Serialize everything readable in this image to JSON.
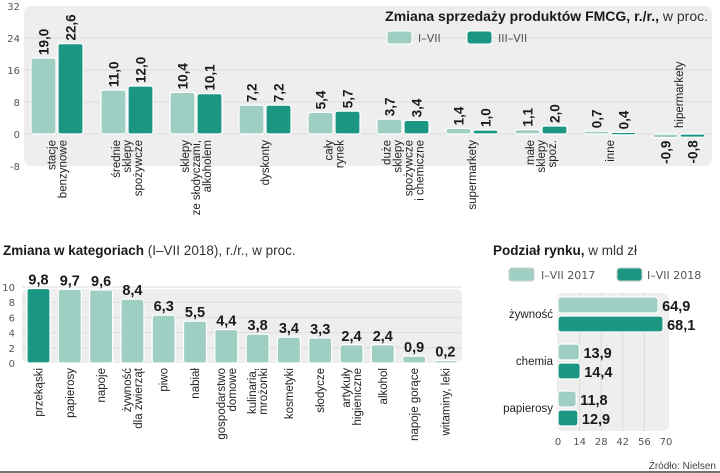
{
  "colors": {
    "light": "#9fcfc3",
    "dark": "#1a9683",
    "panel": "#eeeeee",
    "grid": "#dddddd",
    "bar_stroke": "#ffffff"
  },
  "source": "Źródło: Nielsen",
  "chart_data": [
    {
      "id": "fmcg",
      "type": "bar",
      "title": "Zmiana sprzedaży produktów FMCG, r./r.,",
      "title_suffix": " w proc.",
      "xlabel": "",
      "ylabel": "",
      "ylim": [
        -8,
        32
      ],
      "yticks": [
        "32",
        "24",
        "16",
        "8",
        "0",
        "-8"
      ],
      "ytick_values": [
        32,
        24,
        16,
        8,
        0,
        -8
      ],
      "legend": [
        "I–VII",
        "III–VII"
      ],
      "legend_position": "top-right",
      "categories": [
        [
          "stacje",
          "benzynowe"
        ],
        [
          "średnie",
          "sklepy",
          "spożywcze"
        ],
        [
          "sklepy",
          "ze słodyczami,",
          "alkoholem"
        ],
        [
          "dyskonty"
        ],
        [
          "cały",
          "rynek"
        ],
        [
          "duże",
          "sklepy",
          "spożywcze",
          "i chemiczne"
        ],
        [
          "supermarkety"
        ],
        [
          "małe",
          "sklepy",
          "spoż."
        ],
        [
          "inne"
        ],
        [
          "hipermarkety"
        ]
      ],
      "series": [
        {
          "name": "I–VII",
          "values": [
            19.0,
            11.0,
            10.4,
            7.2,
            5.4,
            3.7,
            1.4,
            1.1,
            0.7,
            -0.9
          ],
          "labels": [
            "19,0",
            "11,0",
            "10,4",
            "7,2",
            "5,4",
            "3,7",
            "1,4",
            "1,1",
            "0,7",
            "-0,9"
          ]
        },
        {
          "name": "III–VII",
          "values": [
            22.6,
            12.0,
            10.1,
            7.2,
            5.7,
            3.4,
            1.0,
            2.0,
            0.4,
            -0.8
          ],
          "labels": [
            "22,6",
            "12,0",
            "10,1",
            "7,2",
            "5,7",
            "3,4",
            "1,0",
            "2,0",
            "0,4",
            "-0,8"
          ]
        }
      ]
    },
    {
      "id": "categories",
      "type": "bar",
      "title": "Zmiana w kategoriach",
      "title_suffix": " (I–VII 2018), r./r., w proc.",
      "ylim": [
        0,
        10
      ],
      "yticks": [
        "10",
        "8",
        "6",
        "4",
        "2",
        "0"
      ],
      "ytick_values": [
        10,
        8,
        6,
        4,
        2,
        0
      ],
      "categories": [
        [
          "przekąski"
        ],
        [
          "papierosy"
        ],
        [
          "napoje"
        ],
        [
          "żywność",
          "dla zwierząt"
        ],
        [
          "piwo"
        ],
        [
          "nabiał"
        ],
        [
          "gospodarstwo",
          "domowe"
        ],
        [
          "kulinaria,",
          "mrożonki"
        ],
        [
          "kosmetyki"
        ],
        [
          "słodycze"
        ],
        [
          "artykuły",
          "higieniczne"
        ],
        [
          "alkohol"
        ],
        [
          "napoje gorące"
        ],
        [
          "witaminy, leki"
        ]
      ],
      "values": [
        9.8,
        9.7,
        9.6,
        8.4,
        6.3,
        5.5,
        4.4,
        3.8,
        3.4,
        3.3,
        2.4,
        2.4,
        0.9,
        0.2
      ],
      "labels": [
        "9,8",
        "9,7",
        "9,6",
        "8,4",
        "6,3",
        "5,5",
        "4,4",
        "3,8",
        "3,4",
        "3,3",
        "2,4",
        "2,4",
        "0,9",
        "0,2"
      ],
      "highlight_index": 0
    },
    {
      "id": "market",
      "type": "bar",
      "orientation": "horizontal",
      "title": "Podział rynku,",
      "title_suffix": " w mld zł",
      "xlim": [
        0,
        70
      ],
      "xticks": [
        "0",
        "14",
        "28",
        "42",
        "56",
        "70"
      ],
      "xtick_values": [
        0,
        14,
        28,
        42,
        56,
        70
      ],
      "legend": [
        "I–VII 2017",
        "I–VII 2018"
      ],
      "legend_position": "top",
      "categories": [
        "żywność",
        "chemia",
        "papierosy"
      ],
      "series": [
        {
          "name": "I–VII 2017",
          "values": [
            64.9,
            13.9,
            11.8
          ],
          "labels": [
            "64,9",
            "13,9",
            "11,8"
          ]
        },
        {
          "name": "I–VII 2018",
          "values": [
            68.1,
            14.4,
            12.9
          ],
          "labels": [
            "68,1",
            "14,4",
            "12,9"
          ]
        }
      ]
    }
  ]
}
